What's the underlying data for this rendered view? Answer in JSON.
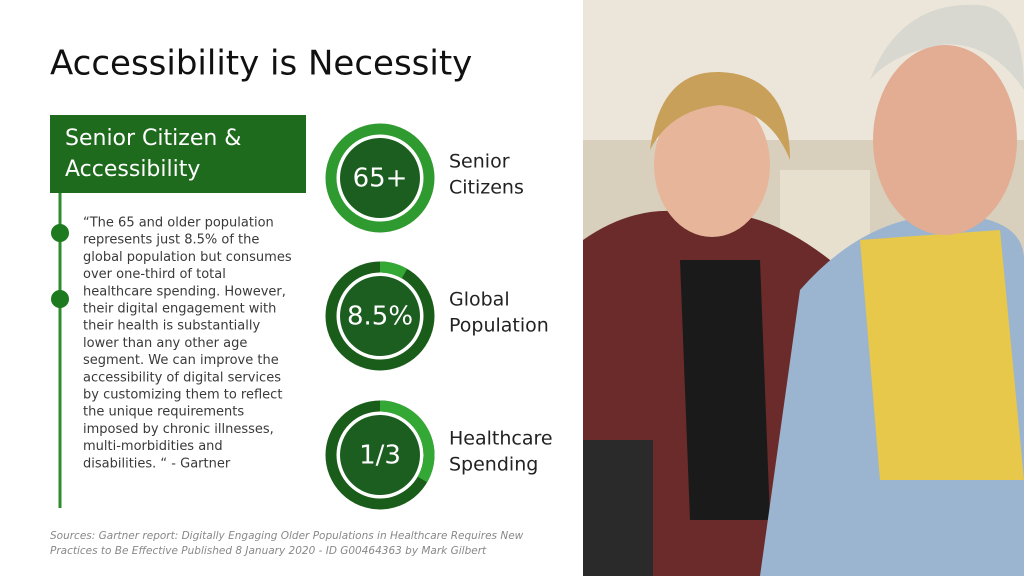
{
  "title": "Accessibility is Necessity",
  "section": {
    "heading": [
      "Senior Citizen &",
      "Accessibility"
    ]
  },
  "quote": [
    "“The 65 and older population",
    "represents just 8.5% of the",
    "global population but consumes",
    "over one-third of total",
    "healthcare spending. However,",
    "their digital engagement with",
    "their health is substantially",
    "lower than any other age",
    "segment.  We can improve the",
    "accessibility of digital services",
    "by customizing them to reflect",
    "the unique requirements",
    "imposed by chronic illnesses,",
    "multi-morbidities and",
    "disabilities. “  - Gartner"
  ],
  "stats": [
    {
      "value": "65+",
      "label": [
        "Senior",
        "Citizens"
      ]
    },
    {
      "value": "8.5%",
      "label": [
        "Global",
        "Population"
      ]
    },
    {
      "value": "1/3",
      "label": [
        "Healthcare",
        "Spending"
      ]
    }
  ],
  "sources": [
    "Sources: Gartner report: Digitally Engaging Older Populations in Healthcare Requires New",
    "Practices to Be Effective Published 8 January  2020 - ID G00464363 by Mark Gilbert"
  ]
}
